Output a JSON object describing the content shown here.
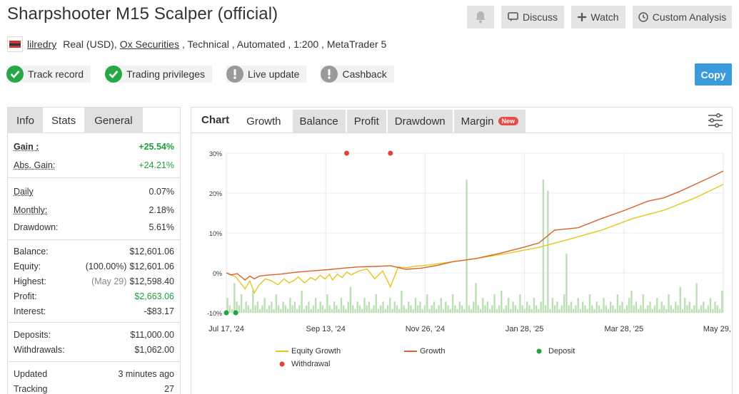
{
  "header": {
    "title": "Sharpshooter M15 Scalper (official)",
    "discuss_label": "Discuss",
    "watch_label": "Watch",
    "analysis_label": "Custom Analysis",
    "bell_icon": "bell-icon",
    "comment_icon": "comment-icon",
    "plus_icon": "plus-icon",
    "clock_icon": "clock-icon"
  },
  "account": {
    "user": "lilredry",
    "type": "Real (USD),",
    "broker": "Ox Securities",
    "details": ", Technical , Automated , 1:200 , MetaTrader 5"
  },
  "badges": [
    {
      "label": "Track record",
      "status": "verified"
    },
    {
      "label": "Trading privileges",
      "status": "verified"
    },
    {
      "label": "Live update",
      "status": "warning"
    },
    {
      "label": "Cashback",
      "status": "warning"
    }
  ],
  "copy_label": "Copy",
  "left_tabs": {
    "info": "Info",
    "stats": "Stats",
    "general": "General"
  },
  "stats": {
    "gain": {
      "label": "Gain :",
      "value": "+25.54%"
    },
    "abs_gain": {
      "label": "Abs. Gain:",
      "value": "+24.21%"
    },
    "daily": {
      "label": "Daily",
      "value": "0.07%"
    },
    "monthly": {
      "label": "Monthly:",
      "value": "2.18%"
    },
    "drawdown": {
      "label": "Drawdown:",
      "value": "5.61%"
    },
    "balance": {
      "label": "Balance:",
      "value": "$12,601.06"
    },
    "equity": {
      "label": "Equity:",
      "pct": "(100.00%)",
      "value": "$12,601.06"
    },
    "highest": {
      "label": "Highest:",
      "date": "(May 29)",
      "value": "$12,598.40"
    },
    "profit": {
      "label": "Profit:",
      "value": "$2,663.06"
    },
    "interest": {
      "label": "Interest:",
      "value": "-$83.17"
    },
    "deposits": {
      "label": "Deposits:",
      "value": "$11,000.00"
    },
    "withdrawals": {
      "label": "Withdrawals:",
      "value": "$1,062.00"
    },
    "updated": {
      "label": "Updated",
      "value": "3 minutes ago"
    },
    "tracking": {
      "label": "Tracking",
      "value": "27"
    }
  },
  "chart_tabs": {
    "chart": "Chart",
    "growth": "Growth",
    "balance": "Balance",
    "profit": "Profit",
    "drawdown": "Drawdown",
    "margin": "Margin",
    "new": "New"
  },
  "colors": {
    "equity": "#e6c619",
    "growth": "#d9622b",
    "deposit": "#22a34a",
    "withdrawal": "#e0413a",
    "bar": "#b8e0b0",
    "accent": "#3a9bdc"
  },
  "chart_data": {
    "type": "line",
    "x_ticks": [
      "Jul 17, '24",
      "Sep 13, '24",
      "Nov 26, '24",
      "Jan 28, '25",
      "Mar 28, '25",
      "May 29, '25"
    ],
    "y_ticks": [
      "30%",
      "20%",
      "10%",
      "0%",
      "-10%"
    ],
    "ylim": [
      -10,
      30
    ],
    "series": [
      {
        "name": "Equity Growth",
        "x": [
          0,
          3,
          6,
          9,
          12,
          15,
          18,
          21,
          25,
          29,
          33,
          37,
          40,
          43,
          46,
          50,
          54,
          57,
          60,
          63,
          66,
          68,
          71,
          74,
          77,
          80,
          85,
          90,
          95,
          100,
          105,
          110,
          115,
          120,
          130,
          145,
          160,
          180,
          200,
          220,
          240,
          260,
          280,
          300,
          318
        ],
        "y": [
          0,
          -0.5,
          -1.0,
          -2.5,
          -4.0,
          -2.0,
          -5.0,
          -3.0,
          -1.5,
          -2.0,
          -3.0,
          -1.5,
          -2.5,
          -2.0,
          -1.0,
          -2.5,
          -1.2,
          -1.8,
          -0.6,
          -1.5,
          -0.4,
          -1.8,
          -0.3,
          -1.2,
          0.2,
          -0.5,
          0.5,
          1.0,
          -1.5,
          0.5,
          -3.5,
          1.5,
          1.3,
          1.6,
          2.0,
          2.8,
          3.6,
          4.9,
          6.4,
          8.5,
          10.7,
          13.6,
          15.7,
          18.8,
          22.2
        ]
      },
      {
        "name": "Growth",
        "x": [
          0,
          3,
          7,
          12,
          15,
          18,
          21,
          25,
          35,
          45,
          55,
          65,
          75,
          85,
          95,
          105,
          115,
          125,
          135,
          145,
          160,
          175,
          190,
          200,
          210,
          225,
          240,
          255,
          270,
          280,
          290,
          300,
          310,
          318
        ],
        "y": [
          0,
          -0.5,
          -0.2,
          -1.8,
          -0.8,
          -1.5,
          -0.8,
          -0.6,
          -0.3,
          0.2,
          0.5,
          0.8,
          1.2,
          1.5,
          1.6,
          1.8,
          0.9,
          1.2,
          1.9,
          2.8,
          3.6,
          4.9,
          6.4,
          7.5,
          10.7,
          11.3,
          13.6,
          15.7,
          18.0,
          18.8,
          20.4,
          22.2,
          24.0,
          25.54
        ]
      },
      {
        "name": "Deposit",
        "points": [
          {
            "x": 0,
            "y": -10
          },
          {
            "x": 6,
            "y": -10
          }
        ]
      },
      {
        "name": "Withdrawal",
        "points": [
          {
            "x": 77,
            "y": 30
          },
          {
            "x": 105,
            "y": 30
          }
        ]
      }
    ],
    "bars": [
      4,
      2,
      1,
      8,
      3,
      2,
      5,
      1,
      3,
      2,
      1,
      6,
      2,
      3,
      1,
      2,
      4,
      1,
      2,
      3,
      1,
      5,
      2,
      1,
      3,
      2,
      1,
      4,
      2,
      3,
      1,
      2,
      6,
      1,
      2,
      3,
      1,
      2,
      4,
      1,
      3,
      2,
      1,
      5,
      2,
      1,
      3,
      2,
      1,
      4,
      2,
      1,
      3,
      7,
      2,
      1,
      3,
      2,
      1,
      4,
      2,
      3,
      1,
      2,
      5,
      1,
      2,
      3,
      1,
      2,
      4,
      1,
      3,
      2,
      1,
      6,
      2,
      1,
      3,
      2,
      1,
      4,
      2,
      3,
      1,
      2,
      5,
      1,
      2,
      3,
      1,
      2,
      4,
      1,
      3,
      2,
      1,
      5,
      2,
      1,
      3,
      2,
      1,
      36,
      2,
      1,
      3,
      8,
      2,
      1,
      4,
      2,
      3,
      1,
      2,
      5,
      1,
      2,
      6,
      1,
      2,
      4,
      1,
      3,
      2,
      1,
      5,
      2,
      1,
      3,
      2,
      1,
      4,
      2,
      1,
      3,
      36,
      2,
      33,
      1,
      4,
      2,
      3,
      1,
      2,
      5,
      16,
      2,
      3,
      1,
      2,
      4,
      1,
      3,
      2,
      1,
      5,
      2,
      1,
      3,
      2,
      1,
      4,
      2,
      1,
      3,
      2,
      1,
      5,
      2,
      3,
      1,
      2,
      4,
      6,
      2,
      3,
      1,
      2,
      5,
      1,
      2,
      3,
      1,
      2,
      4,
      1,
      3,
      2,
      1,
      5,
      2,
      1,
      3,
      2,
      7,
      1,
      4,
      2,
      3,
      1,
      2,
      8,
      1,
      2,
      3,
      1,
      2,
      4,
      1,
      3,
      2,
      1,
      6
    ]
  },
  "legend": {
    "equity": "Equity Growth",
    "growth": "Growth",
    "deposit": "Deposit",
    "withdrawal": "Withdrawal"
  }
}
